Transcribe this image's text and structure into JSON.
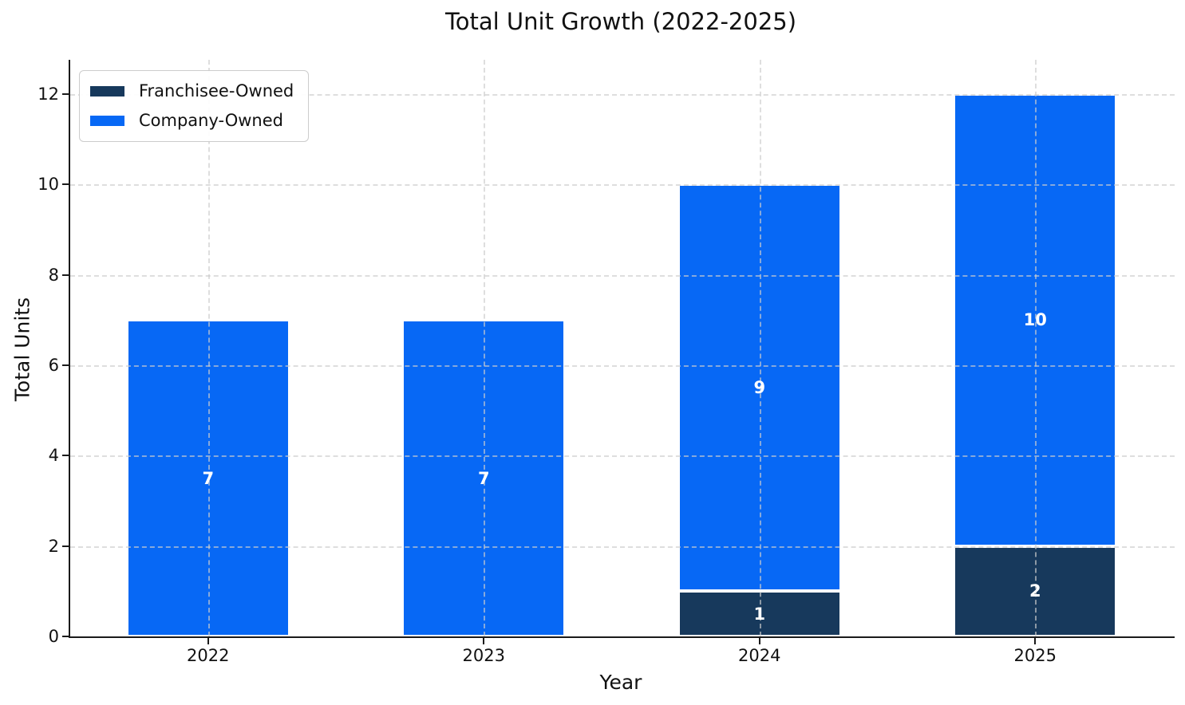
{
  "chart_data": {
    "type": "bar",
    "stacked": true,
    "title": "Total Unit Growth (2022-2025)",
    "xlabel": "Year",
    "ylabel": "Total Units",
    "categories": [
      "2022",
      "2023",
      "2024",
      "2025"
    ],
    "series": [
      {
        "name": "Franchisee-Owned",
        "color": "#17395c",
        "values": [
          0,
          0,
          1,
          2
        ]
      },
      {
        "name": "Company-Owned",
        "color": "#0768f5",
        "values": [
          7,
          7,
          9,
          10
        ]
      }
    ],
    "yticks": [
      0,
      2,
      4,
      6,
      8,
      10,
      12
    ],
    "ylim": [
      0,
      12.76
    ],
    "bar_width_ratio": 0.59,
    "grid": {
      "style": "dashed",
      "color": "#cccccc",
      "over_bars": true
    },
    "legend": {
      "position": "upper-left"
    },
    "value_labels": {
      "show": true,
      "color": "#ffffff",
      "bold": true
    },
    "bar_edge_color": "#ffffff"
  }
}
